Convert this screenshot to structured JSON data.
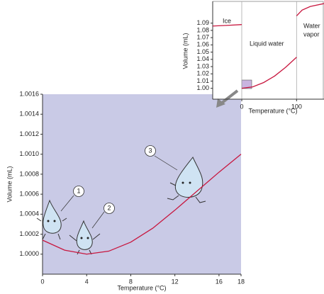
{
  "chart_data": [
    {
      "type": "line",
      "x_label": "Temperature (°C)",
      "y_label": "Volume (mL)",
      "xlim": [
        0,
        18
      ],
      "ylim": [
        0.9998,
        1.0016
      ],
      "xticks": [
        0,
        4,
        8,
        12,
        16,
        18
      ],
      "yticks": [
        {
          "value": 1,
          "label": "1.0000"
        },
        1.0002,
        1.0004,
        1.0006,
        1.0008,
        {
          "value": 1.001,
          "label": "1.0010"
        },
        1.0012,
        1.0014,
        1.0016
      ],
      "series": [
        {
          "color": "#c8173f",
          "x": [
            0,
            2,
            4,
            6,
            8,
            10,
            12,
            14,
            16,
            18
          ],
          "values": [
            1.00014,
            1.00004,
            1.0,
            1.00003,
            1.00012,
            1.00026,
            1.00044,
            1.00063,
            1.00082,
            1.001
          ]
        }
      ],
      "annotations": [
        "1",
        "2",
        "3"
      ]
    },
    {
      "type": "line",
      "x_label": "Temperature (°C)",
      "y_label": "Volume (mL)",
      "xlim": [
        -53,
        150
      ],
      "ylim": [
        0.985,
        1.12
      ],
      "xticks": [
        0,
        100
      ],
      "yticks": [
        {
          "value": 1,
          "label": "1.00"
        },
        1.01,
        1.02,
        1.03,
        1.04,
        1.05,
        1.06,
        1.07,
        1.08,
        1.09
      ],
      "series": [
        {
          "color": "#c8173f",
          "x": [
            -53,
            -25,
            0
          ],
          "values": [
            1.086,
            1.087,
            1.088
          ]
        },
        {
          "color": "#c8173f",
          "x": [
            0,
            20,
            40,
            60,
            80,
            100
          ],
          "values": [
            1.0,
            1.002,
            1.008,
            1.017,
            1.029,
            1.043
          ]
        },
        {
          "color": "#c8173f",
          "x": [
            100,
            110,
            125,
            150
          ],
          "values": [
            1.1,
            1.108,
            1.113,
            1.117
          ]
        }
      ],
      "annotations": [
        "Ice",
        "Liquid water",
        "Water",
        "vapor"
      ]
    }
  ]
}
